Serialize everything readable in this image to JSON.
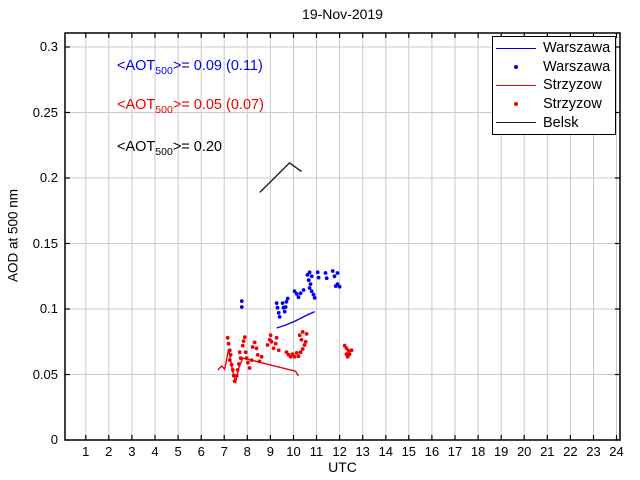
{
  "chart_data": {
    "type": "line+scatter",
    "title": "19-Nov-2019",
    "xlabel": "UTC",
    "ylabel": "AOD at 500 nm",
    "xlim": [
      0.1,
      24.15
    ],
    "ylim": [
      0,
      0.3107
    ],
    "grid": true,
    "xticks": [
      1,
      2,
      3,
      4,
      5,
      6,
      7,
      8,
      9,
      10,
      11,
      12,
      13,
      14,
      15,
      16,
      17,
      18,
      19,
      20,
      21,
      22,
      23,
      24
    ],
    "yticks": [
      0,
      0.05,
      0.1,
      0.15,
      0.2,
      0.25,
      0.3
    ],
    "ytick_labels": [
      "0",
      "0.05",
      "0.1",
      "0.15",
      "0.2",
      "0.25",
      "0.3"
    ],
    "colors": {
      "warszawa": "#0000EE",
      "strzyzow": "#EE0000",
      "belsk": "#222222",
      "grid": "#C9C9C9",
      "axis": "#000000"
    },
    "legend": {
      "position": "top-right",
      "entries": [
        {
          "label": "Warszawa",
          "marker": "line",
          "color": "#0000EE"
        },
        {
          "label": "Warszawa",
          "marker": "dot",
          "color": "#0000EE"
        },
        {
          "label": "Strzyzow",
          "marker": "line",
          "color": "#EE0000"
        },
        {
          "label": "Strzyzow",
          "marker": "dot",
          "color": "#EE0000"
        },
        {
          "label": "Belsk",
          "marker": "line",
          "color": "#222222"
        }
      ]
    },
    "annotations": [
      {
        "prefix": "<AOT",
        "sub": "500",
        "suffix": ">= 0.09 (0.11)",
        "color": "#0000EE"
      },
      {
        "prefix": "<AOT",
        "sub": "500",
        "suffix": ">= 0.05 (0.07)",
        "color": "#EE0000"
      },
      {
        "prefix": "<AOT",
        "sub": "500",
        "suffix": ">= 0.20",
        "color": "#000000"
      }
    ],
    "series": [
      {
        "name": "Warszawa",
        "type": "line",
        "color": "#0000EE",
        "points": [
          [
            9.27,
            0.0855
          ],
          [
            9.62,
            0.0875
          ],
          [
            10.05,
            0.0905
          ],
          [
            10.48,
            0.0945
          ],
          [
            10.92,
            0.098
          ]
        ]
      },
      {
        "name": "Warszawa",
        "type": "scatter",
        "color": "#0000EE",
        "points": [
          [
            7.76,
            0.106
          ],
          [
            7.76,
            0.1015
          ],
          [
            9.27,
            0.1045
          ],
          [
            9.31,
            0.101
          ],
          [
            9.36,
            0.097
          ],
          [
            9.4,
            0.094
          ],
          [
            9.53,
            0.1045
          ],
          [
            9.57,
            0.101
          ],
          [
            9.62,
            0.098
          ],
          [
            9.66,
            0.1015
          ],
          [
            9.7,
            0.1055
          ],
          [
            9.75,
            0.108
          ],
          [
            10.05,
            0.1135
          ],
          [
            10.14,
            0.1115
          ],
          [
            10.22,
            0.109
          ],
          [
            10.31,
            0.112
          ],
          [
            10.44,
            0.1145
          ],
          [
            10.61,
            0.126
          ],
          [
            10.7,
            0.128
          ],
          [
            10.79,
            0.125
          ],
          [
            10.66,
            0.122
          ],
          [
            10.74,
            0.119
          ],
          [
            10.7,
            0.116
          ],
          [
            10.79,
            0.1135
          ],
          [
            10.87,
            0.111
          ],
          [
            10.92,
            0.1085
          ],
          [
            11.05,
            0.128
          ],
          [
            11.09,
            0.124
          ],
          [
            11.39,
            0.1275
          ],
          [
            11.44,
            0.1235
          ],
          [
            11.7,
            0.129
          ],
          [
            11.78,
            0.125
          ],
          [
            11.83,
            0.1175
          ],
          [
            11.91,
            0.119
          ],
          [
            11.91,
            0.1275
          ],
          [
            12.0,
            0.117
          ]
        ]
      },
      {
        "name": "Strzyzow",
        "type": "line",
        "color": "#EE0000",
        "points": [
          [
            6.72,
            0.0535
          ],
          [
            6.89,
            0.0565
          ],
          [
            7.02,
            0.054
          ],
          [
            7.19,
            0.0695
          ],
          [
            7.37,
            0.052
          ],
          [
            7.5,
            0.0445
          ],
          [
            7.63,
            0.055
          ],
          [
            7.8,
            0.0625
          ],
          [
            10.09,
            0.0525
          ],
          [
            10.22,
            0.049
          ]
        ]
      },
      {
        "name": "Strzyzow",
        "type": "scatter",
        "color": "#EE0000",
        "points": [
          [
            7.15,
            0.078
          ],
          [
            7.19,
            0.0735
          ],
          [
            7.24,
            0.0685
          ],
          [
            7.28,
            0.065
          ],
          [
            7.24,
            0.061
          ],
          [
            7.32,
            0.0575
          ],
          [
            7.37,
            0.0535
          ],
          [
            7.41,
            0.049
          ],
          [
            7.45,
            0.045
          ],
          [
            7.54,
            0.049
          ],
          [
            7.58,
            0.0535
          ],
          [
            7.63,
            0.058
          ],
          [
            7.67,
            0.067
          ],
          [
            7.71,
            0.0625
          ],
          [
            7.8,
            0.072
          ],
          [
            7.84,
            0.0755
          ],
          [
            7.89,
            0.0785
          ],
          [
            7.93,
            0.067
          ],
          [
            7.97,
            0.0625
          ],
          [
            8.02,
            0.059
          ],
          [
            8.1,
            0.055
          ],
          [
            8.19,
            0.061
          ],
          [
            8.23,
            0.071
          ],
          [
            8.32,
            0.0745
          ],
          [
            8.4,
            0.07
          ],
          [
            8.45,
            0.065
          ],
          [
            8.53,
            0.06
          ],
          [
            8.62,
            0.0635
          ],
          [
            8.88,
            0.0725
          ],
          [
            8.97,
            0.0765
          ],
          [
            9.01,
            0.08
          ],
          [
            9.05,
            0.075
          ],
          [
            9.14,
            0.07
          ],
          [
            9.23,
            0.0735
          ],
          [
            9.27,
            0.078
          ],
          [
            9.36,
            0.0685
          ],
          [
            9.7,
            0.067
          ],
          [
            9.79,
            0.065
          ],
          [
            9.88,
            0.0635
          ],
          [
            9.96,
            0.0655
          ],
          [
            10.05,
            0.0635
          ],
          [
            10.14,
            0.0665
          ],
          [
            10.22,
            0.064
          ],
          [
            10.31,
            0.067
          ],
          [
            10.4,
            0.0695
          ],
          [
            10.48,
            0.0725
          ],
          [
            10.27,
            0.08
          ],
          [
            10.4,
            0.0825
          ],
          [
            10.57,
            0.081
          ],
          [
            10.35,
            0.0765
          ],
          [
            10.53,
            0.075
          ],
          [
            12.22,
            0.072
          ],
          [
            12.3,
            0.07
          ],
          [
            12.39,
            0.068
          ],
          [
            12.3,
            0.0655
          ],
          [
            12.35,
            0.0635
          ],
          [
            12.43,
            0.0655
          ],
          [
            12.52,
            0.0685
          ]
        ]
      },
      {
        "name": "Belsk",
        "type": "line",
        "color": "#222222",
        "points": [
          [
            8.54,
            0.189
          ],
          [
            9.83,
            0.2115
          ],
          [
            10.35,
            0.205
          ]
        ]
      }
    ]
  }
}
